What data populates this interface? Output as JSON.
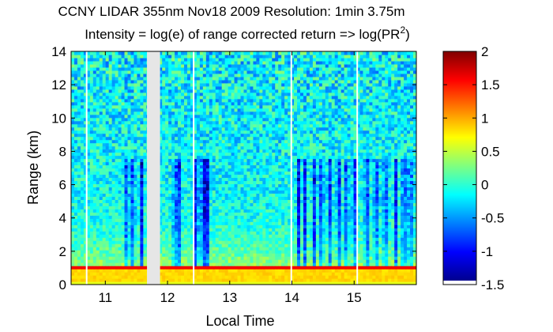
{
  "chart_data": {
    "type": "heatmap",
    "title_line1": "CCNY LIDAR 355nm Nov18 2009 Resolution: 1min 3.75m",
    "title_line2_prefix": "Intensity = log(e) of range corrected return => log(PR",
    "title_line2_superscript": "2",
    "title_line2_suffix": ")",
    "xlabel": "Local Time",
    "ylabel": "Range (km)",
    "xlim": [
      10.45,
      16.0
    ],
    "ylim": [
      0,
      14
    ],
    "xticks": [
      11,
      12,
      13,
      14,
      15
    ],
    "xtick_labels": [
      "11",
      "12",
      "13",
      "14",
      "15"
    ],
    "yticks": [
      0,
      2,
      4,
      6,
      8,
      10,
      12,
      14
    ],
    "ytick_labels": [
      "0",
      "2",
      "4",
      "6",
      "8",
      "10",
      "12",
      "14"
    ],
    "colorbar": {
      "min": -1.5,
      "max": 2,
      "ticks": [
        -1.5,
        -1,
        -0.5,
        0,
        0.5,
        1,
        1.5,
        2
      ],
      "tick_labels": [
        "-1.5",
        "-1",
        "-0.5",
        "0",
        "0.5",
        "1",
        "1.5",
        "2"
      ],
      "colormap": "jet"
    },
    "data_gap": {
      "x_start": 11.67,
      "x_end": 11.88
    },
    "boundary_layer_top_km": 1.0,
    "white_time_markers": [
      10.7,
      12.42,
      13.99,
      15.05
    ],
    "cloud_streaks_x": [
      11.35,
      11.45,
      11.58,
      12.12,
      12.18,
      12.45,
      12.52,
      12.6,
      12.65,
      14.1,
      14.2,
      14.35,
      14.48,
      14.6,
      14.75,
      14.88,
      15.0,
      15.2,
      15.35,
      15.5,
      15.68,
      15.8,
      15.9
    ],
    "colors": {
      "gap": "#e6e6e6",
      "background": "#ffffff"
    }
  }
}
